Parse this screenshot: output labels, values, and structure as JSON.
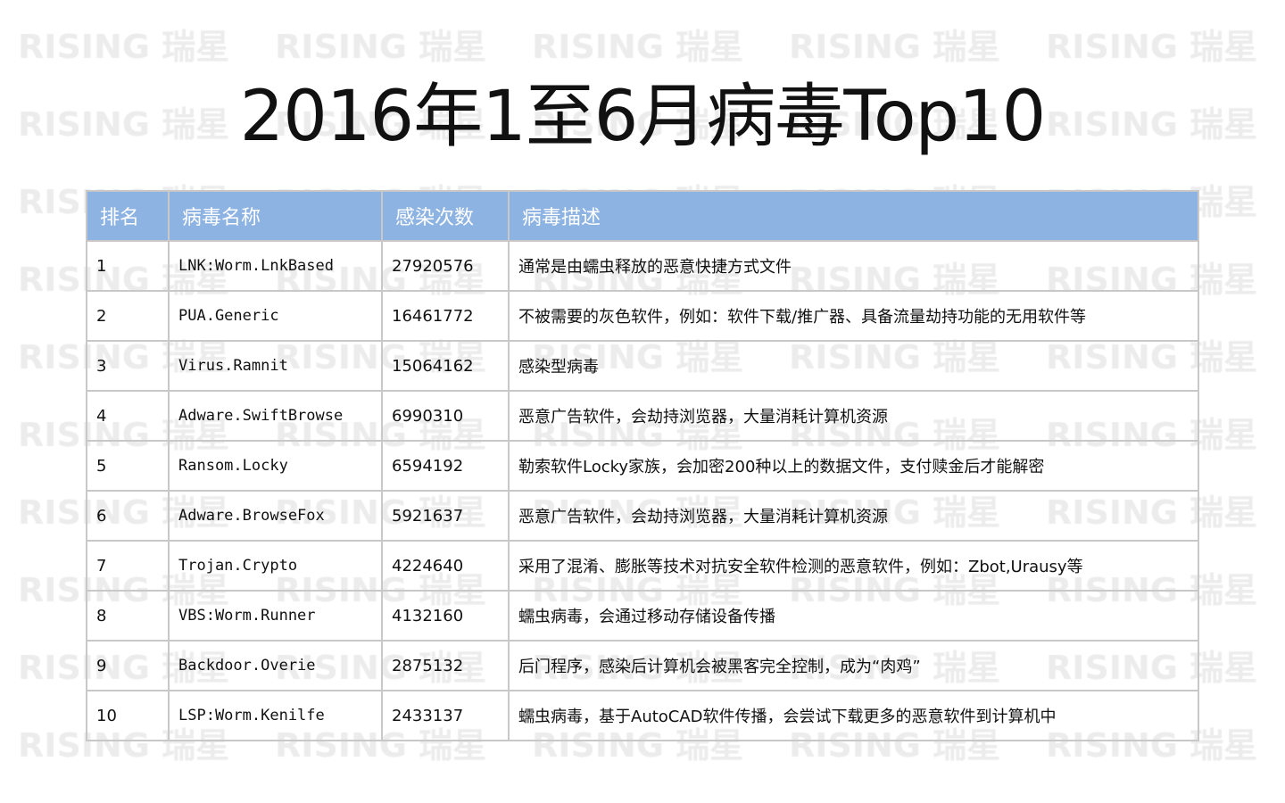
{
  "watermark": "RISING 瑞星",
  "title": "2016年1至6月病毒Top10",
  "table": {
    "headers": [
      "排名",
      "病毒名称",
      "感染次数",
      "病毒描述"
    ],
    "header_color": "#8db3e2",
    "rows": [
      {
        "rank": "1",
        "name": "LNK:Worm.LnkBased",
        "count": "27920576",
        "desc": "通常是由蠕虫释放的恶意快捷方式文件"
      },
      {
        "rank": "2",
        "name": "PUA.Generic",
        "count": "16461772",
        "desc": "不被需要的灰色软件，例如：软件下载/推广器、具备流量劫持功能的无用软件等"
      },
      {
        "rank": "3",
        "name": "Virus.Ramnit",
        "count": "15064162",
        "desc": "感染型病毒"
      },
      {
        "rank": "4",
        "name": "Adware.SwiftBrowse",
        "count": "6990310",
        "desc": "恶意广告软件，会劫持浏览器，大量消耗计算机资源"
      },
      {
        "rank": "5",
        "name": "Ransom.Locky",
        "count": "6594192",
        "desc": "勒索软件Locky家族，会加密200种以上的数据文件，支付赎金后才能解密"
      },
      {
        "rank": "6",
        "name": "Adware.BrowseFox",
        "count": "5921637",
        "desc": "恶意广告软件，会劫持浏览器，大量消耗计算机资源"
      },
      {
        "rank": "7",
        "name": "Trojan.Crypto",
        "count": "4224640",
        "desc": "采用了混淆、膨胀等技术对抗安全软件检测的恶意软件，例如：Zbot,Urausy等"
      },
      {
        "rank": "8",
        "name": "VBS:Worm.Runner",
        "count": "4132160",
        "desc": "蠕虫病毒，会通过移动存储设备传播"
      },
      {
        "rank": "9",
        "name": "Backdoor.Overie",
        "count": "2875132",
        "desc": "后门程序，感染后计算机会被黑客完全控制，成为“肉鸡”"
      },
      {
        "rank": "10",
        "name": "LSP:Worm.Kenilfe",
        "count": "2433137",
        "desc": "蠕虫病毒，基于AutoCAD软件传播，会尝试下载更多的恶意软件到计算机中"
      }
    ]
  }
}
